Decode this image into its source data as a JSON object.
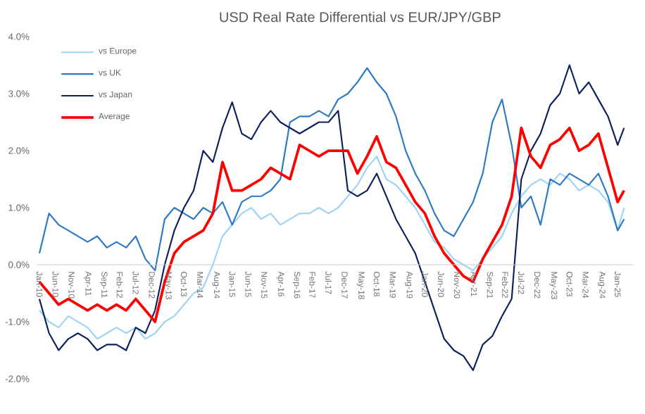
{
  "chart_data": {
    "type": "line",
    "title": "USD Real Rate Differential vs EUR/JPY/GBP",
    "x": [
      "2010-01",
      "2010-04",
      "2010-07",
      "2010-10",
      "2011-01",
      "2011-04",
      "2011-07",
      "2011-10",
      "2012-01",
      "2012-04",
      "2012-07",
      "2012-10",
      "2013-01",
      "2013-04",
      "2013-07",
      "2013-10",
      "2014-01",
      "2014-04",
      "2014-07",
      "2014-10",
      "2015-01",
      "2015-04",
      "2015-07",
      "2015-10",
      "2016-01",
      "2016-04",
      "2016-07",
      "2016-10",
      "2017-01",
      "2017-04",
      "2017-07",
      "2017-10",
      "2018-01",
      "2018-04",
      "2018-07",
      "2018-10",
      "2019-01",
      "2019-04",
      "2019-07",
      "2019-10",
      "2020-01",
      "2020-04",
      "2020-07",
      "2020-10",
      "2021-01",
      "2021-04",
      "2021-07",
      "2021-10",
      "2022-01",
      "2022-04",
      "2022-07",
      "2022-10",
      "2023-01",
      "2023-04",
      "2023-07",
      "2023-10",
      "2024-01",
      "2024-04",
      "2024-07",
      "2024-10",
      "2025-01",
      "2025-03"
    ],
    "series": [
      {
        "name": "vs Europe",
        "color": "#9dd3f5",
        "values": [
          -0.8,
          -1.0,
          -1.1,
          -0.9,
          -1.0,
          -1.1,
          -1.3,
          -1.2,
          -1.1,
          -1.2,
          -1.1,
          -1.3,
          -1.2,
          -1.0,
          -0.9,
          -0.7,
          -0.5,
          -0.4,
          0.0,
          0.5,
          0.7,
          0.9,
          1.0,
          0.8,
          0.9,
          0.7,
          0.8,
          0.9,
          0.9,
          1.0,
          0.9,
          1.0,
          1.2,
          1.4,
          1.7,
          1.9,
          1.5,
          1.4,
          1.2,
          1.0,
          0.7,
          0.4,
          0.3,
          0.1,
          0.0,
          -0.1,
          0.1,
          0.3,
          0.5,
          0.9,
          1.2,
          1.4,
          1.5,
          1.4,
          1.6,
          1.5,
          1.3,
          1.4,
          1.3,
          1.1,
          0.6,
          1.0
        ]
      },
      {
        "name": "vs UK",
        "color": "#2a78c6",
        "values": [
          0.2,
          0.9,
          0.7,
          0.6,
          0.5,
          0.4,
          0.5,
          0.3,
          0.4,
          0.3,
          0.5,
          0.1,
          -0.1,
          0.8,
          1.0,
          0.9,
          0.8,
          1.0,
          0.9,
          1.1,
          0.7,
          1.1,
          1.2,
          1.2,
          1.3,
          1.5,
          2.5,
          2.6,
          2.6,
          2.7,
          2.6,
          2.9,
          3.0,
          3.2,
          3.45,
          3.2,
          3.0,
          2.6,
          2.0,
          1.6,
          1.3,
          0.9,
          0.6,
          0.5,
          0.8,
          1.1,
          1.6,
          2.5,
          2.9,
          2.1,
          1.0,
          1.2,
          0.7,
          1.5,
          1.4,
          1.6,
          1.5,
          1.4,
          1.6,
          1.2,
          0.6,
          0.8
        ]
      },
      {
        "name": "vs Japan",
        "color": "#0c1f5c",
        "values": [
          -0.6,
          -1.2,
          -1.5,
          -1.3,
          -1.2,
          -1.3,
          -1.5,
          -1.4,
          -1.4,
          -1.5,
          -1.1,
          -1.2,
          -0.8,
          0.0,
          0.6,
          1.0,
          1.3,
          2.0,
          1.8,
          2.4,
          2.85,
          2.3,
          2.2,
          2.5,
          2.7,
          2.5,
          2.4,
          2.3,
          2.4,
          2.5,
          2.5,
          2.7,
          1.3,
          1.2,
          1.3,
          1.6,
          1.2,
          0.8,
          0.5,
          0.2,
          -0.3,
          -0.8,
          -1.3,
          -1.5,
          -1.6,
          -1.85,
          -1.4,
          -1.25,
          -0.9,
          -0.6,
          1.5,
          2.0,
          2.3,
          2.8,
          3.0,
          3.5,
          3.0,
          3.2,
          2.9,
          2.6,
          2.1,
          2.4
        ]
      },
      {
        "name": "Average",
        "color": "#ff0000",
        "values": [
          -0.3,
          -0.5,
          -0.7,
          -0.6,
          -0.7,
          -0.8,
          -0.7,
          -0.8,
          -0.7,
          -0.8,
          -0.6,
          -0.8,
          -1.0,
          -0.3,
          0.2,
          0.4,
          0.5,
          0.6,
          0.9,
          1.8,
          1.3,
          1.3,
          1.4,
          1.5,
          1.7,
          1.6,
          1.5,
          2.1,
          2.0,
          1.9,
          2.0,
          2.0,
          2.0,
          1.6,
          1.9,
          2.25,
          1.8,
          1.7,
          1.4,
          1.1,
          0.9,
          0.5,
          0.2,
          0.0,
          -0.2,
          -0.3,
          0.1,
          0.4,
          0.7,
          1.2,
          2.4,
          1.9,
          1.7,
          2.1,
          2.2,
          2.4,
          2.0,
          2.1,
          2.3,
          1.7,
          1.1,
          1.3
        ]
      }
    ],
    "xlim": [
      "2009-12",
      "2025-06"
    ],
    "xticks": [
      {
        "value": "2010-01",
        "label": "Jan-10"
      },
      {
        "value": "2010-06",
        "label": "Jun-10"
      },
      {
        "value": "2010-11",
        "label": "Nov-10"
      },
      {
        "value": "2011-04",
        "label": "Apr-11"
      },
      {
        "value": "2011-09",
        "label": "Sep-11"
      },
      {
        "value": "2012-02",
        "label": "Feb-12"
      },
      {
        "value": "2012-07",
        "label": "Jul-12"
      },
      {
        "value": "2012-12",
        "label": "Dec-12"
      },
      {
        "value": "2013-05",
        "label": "May-13"
      },
      {
        "value": "2013-10",
        "label": "Oct-13"
      },
      {
        "value": "2014-03",
        "label": "Mar-14"
      },
      {
        "value": "2014-08",
        "label": "Aug-14"
      },
      {
        "value": "2015-01",
        "label": "Jan-15"
      },
      {
        "value": "2015-06",
        "label": "Jun-15"
      },
      {
        "value": "2015-11",
        "label": "Nov-15"
      },
      {
        "value": "2016-04",
        "label": "Apr-16"
      },
      {
        "value": "2016-09",
        "label": "Sep-16"
      },
      {
        "value": "2017-02",
        "label": "Feb-17"
      },
      {
        "value": "2017-07",
        "label": "Jul-17"
      },
      {
        "value": "2017-12",
        "label": "Dec-17"
      },
      {
        "value": "2018-05",
        "label": "May-18"
      },
      {
        "value": "2018-10",
        "label": "Oct-18"
      },
      {
        "value": "2019-03",
        "label": "Mar-19"
      },
      {
        "value": "2019-08",
        "label": "Aug-19"
      },
      {
        "value": "2020-01",
        "label": "Jan-20"
      },
      {
        "value": "2020-06",
        "label": "Jun-20"
      },
      {
        "value": "2020-11",
        "label": "Nov-20"
      },
      {
        "value": "2021-04",
        "label": "Apr-21"
      },
      {
        "value": "2021-09",
        "label": "Sep-21"
      },
      {
        "value": "2022-02",
        "label": "Feb-22"
      },
      {
        "value": "2022-07",
        "label": "Jul-22"
      },
      {
        "value": "2022-12",
        "label": "Dec-22"
      },
      {
        "value": "2023-05",
        "label": "May-23"
      },
      {
        "value": "2023-10",
        "label": "Oct-23"
      },
      {
        "value": "2024-03",
        "label": "Mar-24"
      },
      {
        "value": "2024-08",
        "label": "Aug-24"
      },
      {
        "value": "2025-01",
        "label": "Jan-25"
      }
    ],
    "ylim": [
      -2,
      4
    ],
    "yticks": [
      {
        "value": -2,
        "label": "-2.0%"
      },
      {
        "value": -1,
        "label": "-1.0%"
      },
      {
        "value": 0,
        "label": "0.0%"
      },
      {
        "value": 1,
        "label": "1.0%"
      },
      {
        "value": 2,
        "label": "2.0%"
      },
      {
        "value": 3,
        "label": "3.0%"
      },
      {
        "value": 4,
        "label": "4.0%"
      }
    ],
    "legend": "top left",
    "marker": "none",
    "line_style": "solid"
  }
}
